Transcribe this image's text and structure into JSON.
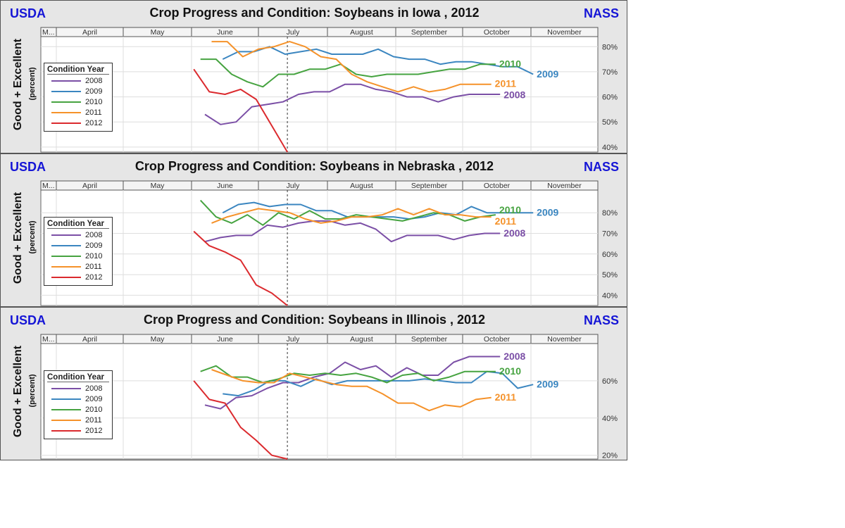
{
  "chart_data": [
    {
      "type": "line",
      "title": "Crop Progress and Condition: Soybeans in Iowa , 2012",
      "left_badge": "USDA",
      "right_badge": "NASS",
      "ylabel": "Good + Excellent",
      "ylabel_sub": "(percent)",
      "x_unit": "day of year",
      "months": [
        "M...",
        "April",
        "May",
        "June",
        "July",
        "August",
        "September",
        "October",
        "November"
      ],
      "ylim": [
        38,
        84
      ],
      "yticks": [
        40,
        50,
        60,
        70,
        80
      ],
      "ytick_labels": [
        "40%",
        "50%",
        "60%",
        "70%",
        "80%"
      ],
      "current_week_marker_doy": 196,
      "legend_title": "Condition Year",
      "series": [
        {
          "name": "2008",
          "color": "#7b4fa6",
          "end_label": "2008",
          "x": [
            159,
            166,
            173,
            180,
            187,
            194,
            201,
            208,
            215,
            222,
            229,
            236,
            243,
            250,
            257,
            264,
            271,
            278,
            285,
            292
          ],
          "y": [
            53,
            49,
            50,
            56,
            57,
            58,
            61,
            62,
            62,
            65,
            65,
            63,
            62,
            60,
            60,
            58,
            60,
            61,
            61,
            61
          ]
        },
        {
          "name": "2009",
          "color": "#3b86c0",
          "end_label": "2009",
          "x": [
            167,
            174,
            181,
            188,
            195,
            202,
            209,
            216,
            223,
            230,
            237,
            244,
            251,
            258,
            265,
            272,
            279,
            286,
            293,
            300,
            307
          ],
          "y": [
            75,
            78,
            78,
            80,
            77,
            78,
            79,
            77,
            77,
            77,
            79,
            76,
            75,
            75,
            73,
            74,
            74,
            73,
            72,
            72,
            69
          ]
        },
        {
          "name": "2010",
          "color": "#46a340",
          "end_label": "2010",
          "x": [
            157,
            164,
            171,
            178,
            185,
            192,
            199,
            206,
            213,
            220,
            227,
            234,
            241,
            248,
            255,
            262,
            269,
            276,
            283,
            290
          ],
          "y": [
            75,
            75,
            69,
            66,
            64,
            69,
            69,
            71,
            71,
            73,
            69,
            68,
            69,
            69,
            69,
            70,
            71,
            71,
            73,
            73
          ]
        },
        {
          "name": "2011",
          "color": "#f5922a",
          "end_label": "2011",
          "x": [
            162,
            169,
            176,
            183,
            190,
            197,
            204,
            211,
            218,
            225,
            232,
            239,
            246,
            253,
            260,
            267,
            274,
            281,
            288
          ],
          "y": [
            82,
            82,
            76,
            79,
            80,
            82,
            80,
            76,
            75,
            69,
            66,
            64,
            62,
            64,
            62,
            63,
            65,
            65,
            65
          ]
        },
        {
          "name": "2012",
          "color": "#db2a2e",
          "end_label": "",
          "x": [
            154,
            161,
            168,
            175,
            182,
            196
          ],
          "y": [
            71,
            62,
            61,
            63,
            59,
            38
          ]
        }
      ]
    },
    {
      "type": "line",
      "title": "Crop Progress and Condition: Soybeans in Nebraska , 2012",
      "left_badge": "USDA",
      "right_badge": "NASS",
      "ylabel": "Good + Excellent",
      "ylabel_sub": "(percent)",
      "x_unit": "day of year",
      "months": [
        "M...",
        "April",
        "May",
        "June",
        "July",
        "August",
        "September",
        "October",
        "November"
      ],
      "ylim": [
        35,
        91
      ],
      "yticks": [
        40,
        50,
        60,
        70,
        80
      ],
      "ytick_labels": [
        "40%",
        "50%",
        "60%",
        "70%",
        "80%"
      ],
      "current_week_marker_doy": 196,
      "legend_title": "Condition Year",
      "series": [
        {
          "name": "2008",
          "color": "#7b4fa6",
          "end_label": "2008",
          "x": [
            159,
            166,
            173,
            180,
            187,
            194,
            201,
            208,
            215,
            222,
            229,
            236,
            243,
            250,
            257,
            264,
            271,
            278,
            285,
            292
          ],
          "y": [
            66,
            68,
            69,
            69,
            74,
            73,
            75,
            76,
            76,
            74,
            75,
            72,
            66,
            69,
            69,
            69,
            67,
            69,
            70,
            70
          ]
        },
        {
          "name": "2009",
          "color": "#3b86c0",
          "end_label": "2009",
          "x": [
            167,
            174,
            181,
            188,
            195,
            202,
            209,
            216,
            223,
            230,
            237,
            244,
            251,
            258,
            265,
            272,
            279,
            286,
            293,
            300,
            307
          ],
          "y": [
            80,
            84,
            85,
            83,
            84,
            84,
            81,
            81,
            78,
            78,
            78,
            78,
            77,
            78,
            80,
            79,
            83,
            80,
            80,
            80,
            80
          ]
        },
        {
          "name": "2010",
          "color": "#46a340",
          "end_label": "2010",
          "x": [
            157,
            164,
            171,
            178,
            185,
            192,
            199,
            206,
            213,
            220,
            227,
            234,
            241,
            248,
            255,
            262,
            269,
            276,
            283,
            290
          ],
          "y": [
            86,
            78,
            75,
            79,
            74,
            80,
            77,
            81,
            77,
            77,
            79,
            78,
            77,
            76,
            78,
            80,
            79,
            76,
            78,
            79
          ]
        },
        {
          "name": "2011",
          "color": "#f5922a",
          "end_label": "2011",
          "x": [
            162,
            169,
            176,
            183,
            190,
            197,
            204,
            211,
            218,
            225,
            232,
            239,
            246,
            253,
            260,
            267,
            274,
            281,
            288
          ],
          "y": [
            75,
            78,
            80,
            82,
            81,
            80,
            77,
            75,
            76,
            78,
            78,
            79,
            82,
            79,
            82,
            79,
            79,
            78,
            78
          ]
        },
        {
          "name": "2012",
          "color": "#db2a2e",
          "end_label": "",
          "x": [
            154,
            161,
            168,
            175,
            182,
            189,
            196
          ],
          "y": [
            71,
            64,
            61,
            57,
            45,
            41,
            35
          ]
        }
      ]
    },
    {
      "type": "line",
      "title": "Crop Progress and Condition: Soybeans in Illinois , 2012",
      "left_badge": "USDA",
      "right_badge": "NASS",
      "ylabel": "Good + Excellent",
      "ylabel_sub": "(percent)",
      "x_unit": "day of year",
      "months": [
        "M...",
        "April",
        "May",
        "June",
        "July",
        "August",
        "September",
        "October",
        "November"
      ],
      "ylim": [
        18,
        80
      ],
      "yticks": [
        20,
        40,
        60
      ],
      "ytick_labels": [
        "20%",
        "40%",
        "60%"
      ],
      "current_week_marker_doy": 196,
      "legend_title": "Condition Year",
      "series": [
        {
          "name": "2008",
          "color": "#7b4fa6",
          "end_label": "2008",
          "x": [
            159,
            166,
            173,
            180,
            187,
            194,
            201,
            208,
            215,
            222,
            229,
            236,
            243,
            250,
            257,
            264,
            271,
            278,
            285,
            292
          ],
          "y": [
            47,
            45,
            51,
            52,
            56,
            59,
            59,
            62,
            64,
            70,
            66,
            68,
            62,
            67,
            63,
            63,
            70,
            73,
            73,
            73
          ]
        },
        {
          "name": "2009",
          "color": "#3b86c0",
          "end_label": "2009",
          "x": [
            167,
            174,
            181,
            188,
            195,
            202,
            209,
            216,
            223,
            230,
            237,
            244,
            251,
            258,
            265,
            272,
            279,
            286,
            293,
            300,
            307
          ],
          "y": [
            53,
            52,
            55,
            60,
            60,
            57,
            61,
            58,
            60,
            60,
            60,
            60,
            60,
            61,
            60,
            59,
            59,
            65,
            64,
            56,
            58
          ]
        },
        {
          "name": "2010",
          "color": "#46a340",
          "end_label": "2010",
          "x": [
            157,
            164,
            171,
            178,
            185,
            192,
            199,
            206,
            213,
            220,
            227,
            234,
            241,
            248,
            255,
            262,
            269,
            276,
            283,
            290
          ],
          "y": [
            65,
            68,
            62,
            62,
            59,
            61,
            64,
            63,
            64,
            63,
            64,
            62,
            59,
            63,
            64,
            60,
            62,
            65,
            65,
            65
          ]
        },
        {
          "name": "2011",
          "color": "#f5922a",
          "end_label": "2011",
          "x": [
            162,
            169,
            176,
            183,
            190,
            197,
            204,
            211,
            218,
            225,
            232,
            239,
            246,
            253,
            260,
            267,
            274,
            281,
            288
          ],
          "y": [
            66,
            63,
            60,
            59,
            59,
            64,
            62,
            60,
            58,
            57,
            57,
            53,
            48,
            48,
            44,
            47,
            46,
            50,
            51
          ]
        },
        {
          "name": "2012",
          "color": "#db2a2e",
          "end_label": "",
          "x": [
            154,
            161,
            168,
            175,
            182,
            189,
            196
          ],
          "y": [
            60,
            50,
            48,
            35,
            28,
            20,
            17
          ]
        }
      ]
    }
  ]
}
